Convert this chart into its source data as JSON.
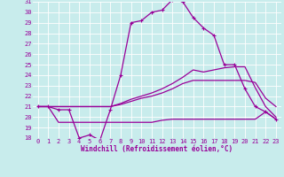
{
  "xlabel": "Windchill (Refroidissement éolien,°C)",
  "bg_color": "#c8ecec",
  "grid_color": "#b0d8d8",
  "line_color": "#990099",
  "x_hours": [
    0,
    1,
    2,
    3,
    4,
    5,
    6,
    7,
    8,
    9,
    10,
    11,
    12,
    13,
    14,
    15,
    16,
    17,
    18,
    19,
    20,
    21,
    22,
    23
  ],
  "series1": [
    21.0,
    21.0,
    20.7,
    20.7,
    18.0,
    18.3,
    17.8,
    20.7,
    24.0,
    29.0,
    29.2,
    30.0,
    30.2,
    31.2,
    31.0,
    29.5,
    28.5,
    27.8,
    25.0,
    25.0,
    22.7,
    21.0,
    20.5,
    19.8
  ],
  "series2": [
    21.0,
    21.0,
    21.0,
    21.0,
    21.0,
    21.0,
    21.0,
    21.0,
    21.3,
    21.7,
    22.0,
    22.3,
    22.7,
    23.2,
    23.8,
    24.5,
    24.3,
    24.5,
    24.7,
    24.8,
    24.8,
    22.8,
    21.0,
    20.0
  ],
  "series3": [
    21.0,
    21.0,
    21.0,
    21.0,
    21.0,
    21.0,
    21.0,
    21.0,
    21.2,
    21.5,
    21.8,
    22.0,
    22.3,
    22.7,
    23.2,
    23.5,
    23.5,
    23.5,
    23.5,
    23.5,
    23.5,
    23.3,
    21.8,
    21.0
  ],
  "series4": [
    21.0,
    21.0,
    19.5,
    19.5,
    19.5,
    19.5,
    19.5,
    19.5,
    19.5,
    19.5,
    19.5,
    19.5,
    19.7,
    19.8,
    19.8,
    19.8,
    19.8,
    19.8,
    19.8,
    19.8,
    19.8,
    19.8,
    20.5,
    19.8
  ],
  "ylim": [
    18,
    31
  ],
  "xlim": [
    -0.5,
    23.5
  ],
  "yticks": [
    18,
    19,
    20,
    21,
    22,
    23,
    24,
    25,
    26,
    27,
    28,
    29,
    30,
    31
  ],
  "xticks": [
    0,
    1,
    2,
    3,
    4,
    5,
    6,
    7,
    8,
    9,
    10,
    11,
    12,
    13,
    14,
    15,
    16,
    17,
    18,
    19,
    20,
    21,
    22,
    23
  ],
  "tick_fontsize": 5.0,
  "xlabel_fontsize": 5.5
}
